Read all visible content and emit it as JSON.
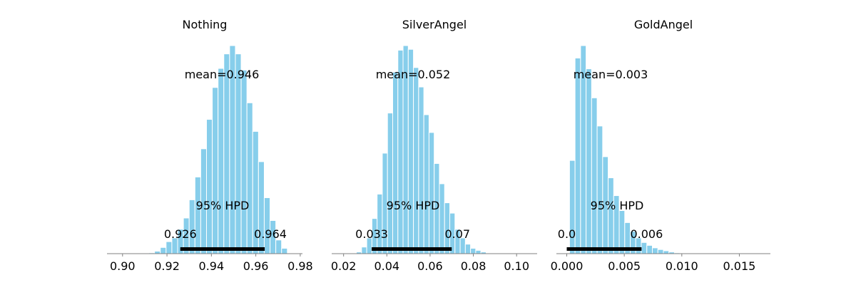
{
  "chart_data": [
    {
      "type": "histogram",
      "title": "Nothing",
      "xlabel": "",
      "ylabel": "",
      "xlim": [
        0.893,
        0.981
      ],
      "xticks": [
        0.9,
        0.92,
        0.94,
        0.96,
        0.98
      ],
      "xtick_labels": [
        "0.90",
        "0.92",
        "0.94",
        "0.96",
        "0.98"
      ],
      "bin_width": 0.0026,
      "bins": [
        {
          "x": 0.9105,
          "count": 1
        },
        {
          "x": 0.9131,
          "count": 2
        },
        {
          "x": 0.9157,
          "count": 6
        },
        {
          "x": 0.9183,
          "count": 15
        },
        {
          "x": 0.9209,
          "count": 29
        },
        {
          "x": 0.9235,
          "count": 38
        },
        {
          "x": 0.9261,
          "count": 59
        },
        {
          "x": 0.9287,
          "count": 86
        },
        {
          "x": 0.9313,
          "count": 130
        },
        {
          "x": 0.9339,
          "count": 185
        },
        {
          "x": 0.9365,
          "count": 253
        },
        {
          "x": 0.9391,
          "count": 324
        },
        {
          "x": 0.9417,
          "count": 401
        },
        {
          "x": 0.9443,
          "count": 447
        },
        {
          "x": 0.9469,
          "count": 482
        },
        {
          "x": 0.9495,
          "count": 502
        },
        {
          "x": 0.9521,
          "count": 482
        },
        {
          "x": 0.9547,
          "count": 443
        },
        {
          "x": 0.9573,
          "count": 364
        },
        {
          "x": 0.9599,
          "count": 295
        },
        {
          "x": 0.9625,
          "count": 222
        },
        {
          "x": 0.9651,
          "count": 135
        },
        {
          "x": 0.9677,
          "count": 80
        },
        {
          "x": 0.9703,
          "count": 33
        },
        {
          "x": 0.9729,
          "count": 13
        }
      ],
      "mean_label": "mean=0.946",
      "hpd_label": "95% HPD",
      "hpd": [
        0.926,
        0.964
      ],
      "hpd_low_label": "0.926",
      "hpd_high_label": "0.964",
      "colors": {
        "bars": "#87ceeb",
        "hpd_bar": "#000000"
      }
    },
    {
      "type": "histogram",
      "title": "SilverAngel",
      "xlabel": "",
      "ylabel": "",
      "xlim": [
        0.0145,
        0.1095
      ],
      "xticks": [
        0.02,
        0.04,
        0.06,
        0.08,
        0.1
      ],
      "xtick_labels": [
        "0.02",
        "0.04",
        "0.06",
        "0.08",
        "0.10"
      ],
      "bin_width": 0.0024,
      "bins": [
        {
          "x": 0.0247,
          "count": 1
        },
        {
          "x": 0.0271,
          "count": 4
        },
        {
          "x": 0.0295,
          "count": 16
        },
        {
          "x": 0.0319,
          "count": 38
        },
        {
          "x": 0.0343,
          "count": 85
        },
        {
          "x": 0.0367,
          "count": 144
        },
        {
          "x": 0.0391,
          "count": 243
        },
        {
          "x": 0.0415,
          "count": 340
        },
        {
          "x": 0.0439,
          "count": 439
        },
        {
          "x": 0.0463,
          "count": 492
        },
        {
          "x": 0.0487,
          "count": 503
        },
        {
          "x": 0.0511,
          "count": 494
        },
        {
          "x": 0.0535,
          "count": 450
        },
        {
          "x": 0.0559,
          "count": 403
        },
        {
          "x": 0.0583,
          "count": 336
        },
        {
          "x": 0.0607,
          "count": 293
        },
        {
          "x": 0.0631,
          "count": 218
        },
        {
          "x": 0.0655,
          "count": 169
        },
        {
          "x": 0.0679,
          "count": 123
        },
        {
          "x": 0.0703,
          "count": 98
        },
        {
          "x": 0.0727,
          "count": 59
        },
        {
          "x": 0.0751,
          "count": 38
        },
        {
          "x": 0.0775,
          "count": 23
        },
        {
          "x": 0.0799,
          "count": 13
        },
        {
          "x": 0.0823,
          "count": 8
        },
        {
          "x": 0.0847,
          "count": 4
        },
        {
          "x": 0.0871,
          "count": 1
        }
      ],
      "mean_label": "mean=0.052",
      "hpd_label": "95% HPD",
      "hpd": [
        0.033,
        0.07
      ],
      "hpd_low_label": "0.033",
      "hpd_high_label": "0.07",
      "colors": {
        "bars": "#87ceeb",
        "hpd_bar": "#000000"
      }
    },
    {
      "type": "histogram",
      "title": "GoldAngel",
      "xlabel": "",
      "ylabel": "",
      "xlim": [
        -0.0009,
        0.0177
      ],
      "xticks": [
        0.0,
        0.005,
        0.01,
        0.015
      ],
      "xtick_labels": [
        "0.000",
        "0.005",
        "0.010",
        "0.015"
      ],
      "bin_width": 0.00048,
      "bins": [
        {
          "x": 0.00048,
          "count": 225
        },
        {
          "x": 0.00096,
          "count": 472
        },
        {
          "x": 0.00144,
          "count": 502
        },
        {
          "x": 0.00192,
          "count": 446
        },
        {
          "x": 0.0024,
          "count": 376
        },
        {
          "x": 0.00288,
          "count": 308
        },
        {
          "x": 0.00336,
          "count": 234
        },
        {
          "x": 0.00384,
          "count": 183
        },
        {
          "x": 0.00432,
          "count": 140
        },
        {
          "x": 0.0048,
          "count": 104
        },
        {
          "x": 0.00528,
          "count": 75
        },
        {
          "x": 0.00576,
          "count": 54
        },
        {
          "x": 0.00624,
          "count": 38
        },
        {
          "x": 0.00672,
          "count": 27
        },
        {
          "x": 0.0072,
          "count": 20
        },
        {
          "x": 0.00768,
          "count": 14
        },
        {
          "x": 0.00816,
          "count": 10
        },
        {
          "x": 0.00864,
          "count": 7
        },
        {
          "x": 0.00912,
          "count": 4
        },
        {
          "x": 0.0096,
          "count": 2
        },
        {
          "x": 0.01008,
          "count": 1
        }
      ],
      "mean_label": "mean=0.003",
      "hpd_label": "95% HPD",
      "hpd": [
        0.0,
        0.0065
      ],
      "hpd_low_label": "0.0",
      "hpd_high_label": "0.006",
      "colors": {
        "bars": "#87ceeb",
        "hpd_bar": "#000000"
      }
    }
  ]
}
